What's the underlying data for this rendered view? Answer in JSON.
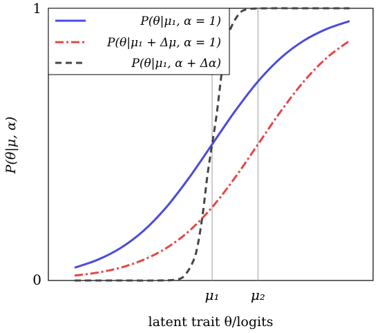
{
  "chart_data": {
    "type": "line",
    "title": "",
    "xlabel": "latent trait θ/logits",
    "ylabel": "P(θ|μ, α)",
    "xlim": [
      -3.0,
      3.0
    ],
    "ylim": [
      0,
      1
    ],
    "yticks": [
      {
        "value": 0,
        "label": "0"
      },
      {
        "value": 1,
        "label": "1"
      }
    ],
    "xticks": [
      {
        "value": 0.0,
        "label": "μ₁"
      },
      {
        "value": 1.0,
        "label": "μ₂"
      }
    ],
    "vlines": [
      0.0,
      1.0
    ],
    "grid": false,
    "legend_position": "top-left",
    "series": [
      {
        "name": "P(θ|μ₁, α = 1)",
        "color": "#4a4ae0",
        "dash": "solid",
        "x": [
          -3.0,
          -2.5,
          -2.0,
          -1.5,
          -1.0,
          -0.5,
          0.0,
          0.5,
          1.0,
          1.5,
          2.0,
          2.5,
          3.0
        ],
        "y": [
          0.047,
          0.076,
          0.119,
          0.182,
          0.269,
          0.378,
          0.5,
          0.622,
          0.731,
          0.818,
          0.881,
          0.924,
          0.953
        ]
      },
      {
        "name": "P(θ|μ₁ + Δμ, α = 1)",
        "color": "#e84343",
        "dash": "dashdot",
        "x": [
          -3.0,
          -2.5,
          -2.0,
          -1.5,
          -1.0,
          -0.5,
          0.0,
          0.5,
          1.0,
          1.5,
          2.0,
          2.5,
          3.0
        ],
        "y": [
          0.018,
          0.029,
          0.047,
          0.076,
          0.119,
          0.182,
          0.269,
          0.378,
          0.5,
          0.622,
          0.731,
          0.818,
          0.881
        ]
      },
      {
        "name": "P(θ|μ₁, α + Δα)",
        "color": "#444444",
        "dash": "dashed",
        "x": [
          -3.0,
          -2.0,
          -1.2,
          -0.8,
          -0.6,
          -0.4,
          -0.3,
          -0.2,
          -0.1,
          0.0,
          0.1,
          0.2,
          0.3,
          0.4,
          0.6,
          0.8,
          1.2,
          2.0,
          3.0
        ],
        "y": [
          0.0,
          0.0,
          0.0,
          0.003,
          0.018,
          0.076,
          0.142,
          0.25,
          0.389,
          0.5,
          0.611,
          0.75,
          0.858,
          0.924,
          0.982,
          0.997,
          1.0,
          1.0,
          1.0
        ]
      }
    ]
  }
}
